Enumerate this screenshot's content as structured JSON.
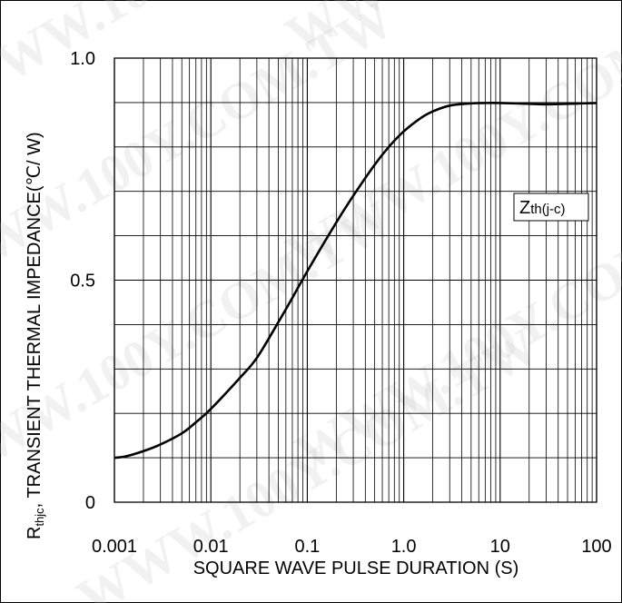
{
  "chart_data": {
    "type": "line",
    "ylabel_prefix": "R",
    "ylabel_sub": "thjc",
    "ylabel_rest": ", TRANSIENT THERMAL IMPEDANCE(℃/ W)",
    "xlabel": "SQUARE WAVE PULSE DURATION (S)",
    "x_scale": "log",
    "xlim": [
      0.001,
      100
    ],
    "ylim": [
      0,
      1.0
    ],
    "grid": true,
    "x_tick_labels": [
      "0.001",
      "0.01",
      "0.1",
      "1.0",
      "10",
      "100"
    ],
    "y_tick_labels": [
      "0",
      "0.5",
      "1.0"
    ],
    "annotation_main": "Z",
    "annotation_sub": "th(j-c)",
    "series": [
      {
        "points": [
          [
            0.001,
            0.1
          ],
          [
            0.0013,
            0.103
          ],
          [
            0.002,
            0.115
          ],
          [
            0.003,
            0.13
          ],
          [
            0.005,
            0.155
          ],
          [
            0.007,
            0.18
          ],
          [
            0.01,
            0.21
          ],
          [
            0.02,
            0.28
          ],
          [
            0.03,
            0.325
          ],
          [
            0.05,
            0.405
          ],
          [
            0.07,
            0.46
          ],
          [
            0.1,
            0.52
          ],
          [
            0.2,
            0.63
          ],
          [
            0.3,
            0.69
          ],
          [
            0.5,
            0.76
          ],
          [
            0.7,
            0.8
          ],
          [
            1.0,
            0.835
          ],
          [
            1.5,
            0.865
          ],
          [
            2.0,
            0.88
          ],
          [
            3.0,
            0.893
          ],
          [
            5.0,
            0.898
          ],
          [
            7.0,
            0.899
          ],
          [
            10,
            0.899
          ],
          [
            20,
            0.897
          ],
          [
            30,
            0.896
          ],
          [
            50,
            0.897
          ],
          [
            70,
            0.898
          ],
          [
            100,
            0.899
          ]
        ]
      }
    ]
  },
  "watermark_text": "WWW.100Y.COM.TW",
  "colors": {
    "line": "#000000",
    "grid": "#000000",
    "background": "#ffffff"
  }
}
